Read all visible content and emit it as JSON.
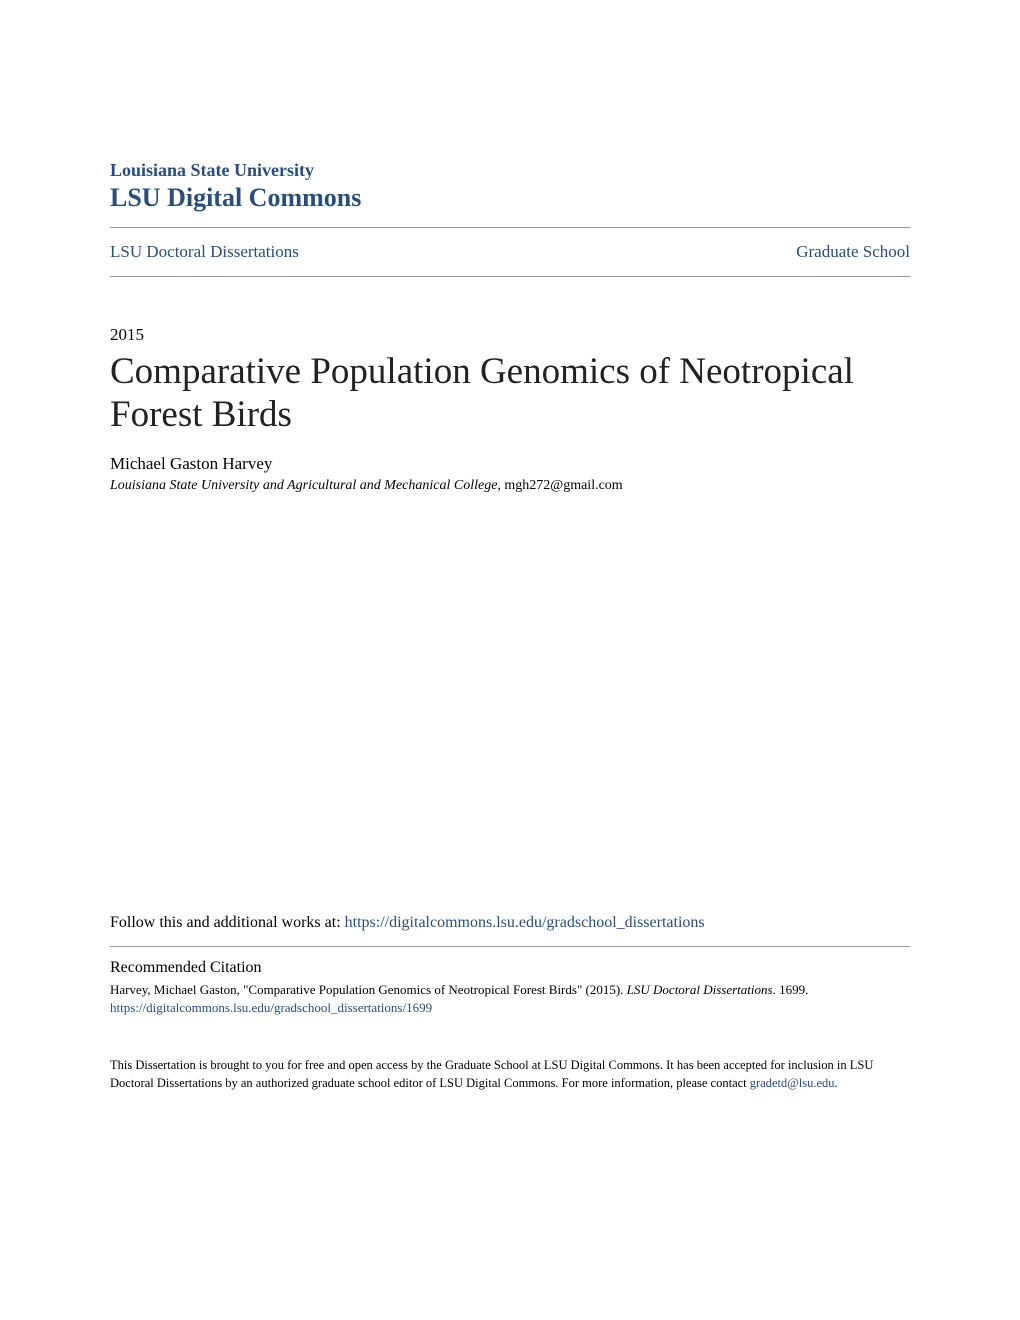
{
  "header": {
    "institution": "Louisiana State University",
    "repository": "LSU Digital Commons"
  },
  "nav": {
    "left": "LSU Doctoral Dissertations",
    "right": "Graduate School"
  },
  "meta": {
    "year": "2015",
    "title": "Comparative Population Genomics of Neotropical Forest Birds",
    "author": "Michael Gaston Harvey",
    "affiliation_italic": "Louisiana State University and Agricultural and Mechanical College",
    "affiliation_email": ", mgh272@gmail.com"
  },
  "follow": {
    "prefix": "Follow this and additional works at: ",
    "url": "https://digitalcommons.lsu.edu/gradschool_dissertations"
  },
  "citation": {
    "heading": "Recommended Citation",
    "text_part1": "Harvey, Michael Gaston, \"Comparative Population Genomics of Neotropical Forest Birds\" (2015). ",
    "text_italic": "LSU Doctoral Dissertations",
    "text_part2": ". 1699.",
    "url": "https://digitalcommons.lsu.edu/gradschool_dissertations/1699"
  },
  "footer": {
    "text": "This Dissertation is brought to you for free and open access by the Graduate School at LSU Digital Commons. It has been accepted for inclusion in LSU Doctoral Dissertations by an authorized graduate school editor of LSU Digital Commons. For more information, please contact ",
    "email": "gradetd@lsu.edu",
    "suffix": "."
  },
  "colors": {
    "link_color": "#2a4d7a",
    "text_color": "#000000",
    "divider_color": "#999999",
    "background_color": "#ffffff"
  },
  "typography": {
    "institution_fontsize": 18,
    "repository_fontsize": 26,
    "nav_fontsize": 17,
    "year_fontsize": 17,
    "title_fontsize": 37,
    "author_fontsize": 17,
    "affiliation_fontsize": 14,
    "follow_fontsize": 16,
    "citation_heading_fontsize": 16,
    "citation_text_fontsize": 13,
    "footer_fontsize": 12.5
  }
}
